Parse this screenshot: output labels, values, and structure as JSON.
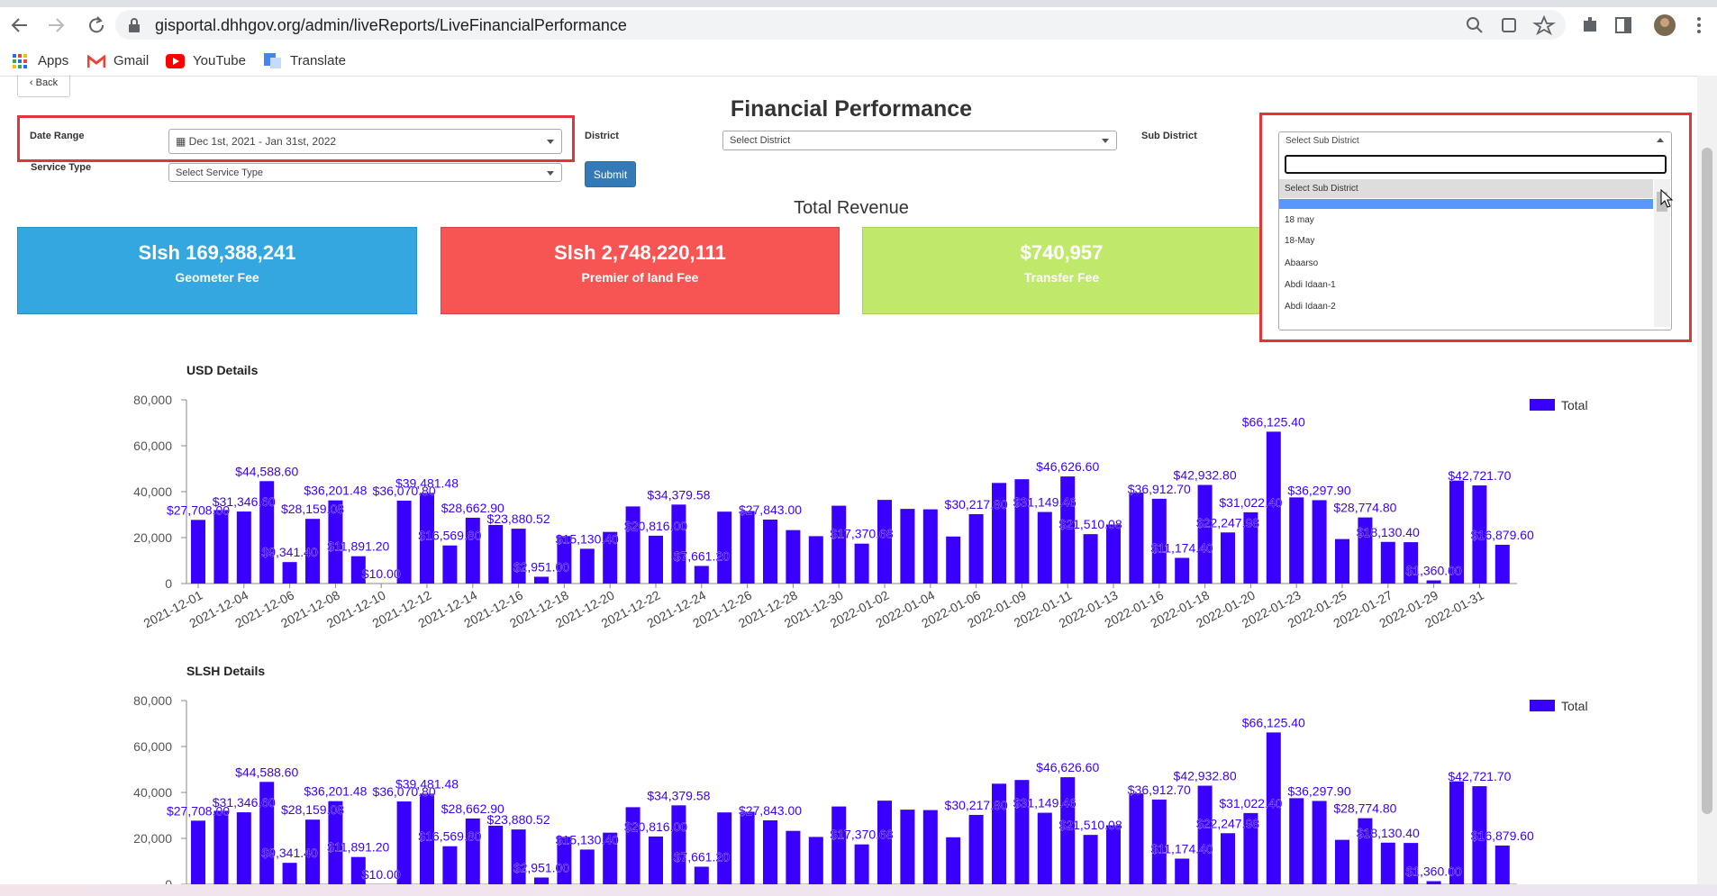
{
  "browser": {
    "url": "gisportal.dhhgov.org/admin/liveReports/LiveFinancialPerformance",
    "bookmarks": [
      "Apps",
      "Gmail",
      "YouTube",
      "Translate"
    ]
  },
  "page": {
    "back": "Back",
    "title": "Financial Performance",
    "filters": {
      "date_range_label": "Date Range",
      "date_range": "Dec 1st, 2021 - Jan 31st, 2022",
      "district_label": "District",
      "district": "Select District",
      "sub_district_label": "Sub District",
      "sub_district": "Select Sub District",
      "service_type_label": "Service Type",
      "service_type": "Select Service Type",
      "submit": "Submit"
    },
    "total_revenue": "Total Revenue",
    "cards": [
      {
        "amount": "Slsh 169,388,241",
        "label": "Geometer Fee"
      },
      {
        "amount": "Slsh 2,748,220,111",
        "label": "Premier of land Fee"
      },
      {
        "amount": "$740,957",
        "label": "Transfer Fee"
      }
    ],
    "dropdown": {
      "options": [
        "Select Sub District",
        "18 may",
        "18-May",
        "Abaarso",
        "Abdi Idaan-1",
        "Abdi Idaan-2"
      ]
    }
  },
  "chart_data": [
    {
      "type": "bar",
      "title": "USD Details",
      "categories": [
        "2021-12-01",
        null,
        "2021-12-04",
        null,
        "2021-12-06",
        null,
        "2021-12-08",
        null,
        "2021-12-10",
        null,
        "2021-12-12",
        null,
        "2021-12-14",
        null,
        "2021-12-16",
        null,
        "2021-12-18",
        null,
        "2021-12-20",
        null,
        "2021-12-22",
        null,
        "2021-12-24",
        null,
        "2021-12-26",
        null,
        "2021-12-28",
        null,
        "2021-12-30",
        null,
        "2022-01-02",
        null,
        "2022-01-04",
        null,
        "2022-01-06",
        null,
        "2022-01-09",
        null,
        "2022-01-11",
        null,
        "2022-01-13",
        null,
        "2022-01-16",
        null,
        "2022-01-18",
        null,
        "2022-01-20",
        null,
        "2022-01-23",
        null,
        "2022-01-25",
        null,
        "2022-01-27",
        null,
        "2022-01-29",
        null,
        "2022-01-31",
        null
      ],
      "series": [
        {
          "name": "Total",
          "color": "#3a00ff",
          "values": [
            27708,
            32000,
            31346.6,
            44588.6,
            9341.4,
            28159.08,
            36201.48,
            11891.2,
            10,
            36070.8,
            39481.48,
            16569.8,
            28662.9,
            25500,
            23880.52,
            2951,
            20679,
            15130.4,
            22475,
            33570,
            20816,
            34379.58,
            7661.2,
            31300,
            31572.28,
            27843,
            23256.4,
            20623,
            33881.34,
            17370.68,
            36423.55,
            32500,
            32316,
            20476.31,
            30217.8,
            43800,
            45417,
            31149.46,
            46626.6,
            21510.08,
            25699.74,
            39591.28,
            36912.7,
            11174.4,
            42932.8,
            22247.98,
            31022.4,
            66125.4,
            37500,
            36297.9,
            19364,
            28774.8,
            18130.4,
            18000,
            1360,
            44843.7,
            42721.7,
            16879.6
          ],
          "value_labels": [
            "$27,708.00",
            null,
            "$31,346.60",
            "$44,588.60",
            "$9,341.40",
            "$28,159.08",
            "$36,201.48",
            "$11,891.20",
            "$10.00",
            "$36,070.80",
            "$39,481.48",
            "$16,569.80",
            "$28,662.90",
            null,
            "$23,880.52",
            "$2,951.00",
            null,
            "$15,130.40",
            null,
            null,
            "$20,816.00",
            "$34,379.58",
            "$7,661.20",
            null,
            null,
            "$27,843.00",
            null,
            null,
            null,
            "$17,370.68",
            null,
            null,
            null,
            null,
            "$30,217.80",
            null,
            null,
            "$31,149.46",
            "$46,626.60",
            "$21,510.08",
            null,
            null,
            "$36,912.70",
            "$11,174.40",
            "$42,932.80",
            "$22,247.98",
            "$31,022.40",
            "$66,125.40",
            null,
            "$36,297.90",
            null,
            "$28,774.80",
            "$18,130.40",
            null,
            "$1,360.00",
            null,
            "$42,721.70",
            "$16,879.60"
          ]
        }
      ],
      "ylim": [
        0,
        80000
      ],
      "yticks": [
        0,
        {
          "value": 20000,
          "label": "20,000"
        },
        {
          "value": 40000,
          "label": "40,000"
        },
        {
          "value": 60000,
          "label": "60,000"
        },
        {
          "value": 80000,
          "label": "80,000"
        }
      ],
      "grid": false,
      "legend": "top-right"
    },
    {
      "type": "bar",
      "title": "SLSH Details",
      "series": [
        {
          "name": "Total",
          "color": "#3a00ff",
          "values": [
            27708,
            32000,
            31346.6,
            44588.6,
            9341.4,
            28159.08,
            36201.48,
            11891.2,
            10,
            36070.8,
            39481.48,
            16569.8,
            28662.9,
            25500,
            23880.52,
            2951,
            20679,
            15130.4,
            22475,
            33570,
            20816,
            34379.58,
            7661.2,
            31300,
            31572.28,
            27843,
            23256.4,
            20623,
            33881.34,
            17370.68,
            36423.55,
            32500,
            32316,
            20476.31,
            30217.8,
            43800,
            45417,
            31149.46,
            46626.6,
            21510.08,
            25699.74,
            39591.28,
            36912.7,
            11174.4,
            42932.8,
            22247.98,
            31022.4,
            66125.4,
            37500,
            36297.9,
            19364,
            28774.8,
            18130.4,
            18000,
            1360,
            44843.7,
            42721.7,
            16879.6
          ],
          "value_labels": [
            "$27,708.00",
            null,
            "$31,346.60",
            "$44,588.60",
            "$9,341.40",
            "$28,159.08",
            "$36,201.48",
            "$11,891.20",
            "$10.00",
            "$36,070.80",
            "$39,481.48",
            "$16,569.80",
            "$28,662.90",
            null,
            "$23,880.52",
            "$2,951.00",
            null,
            "$15,130.40",
            null,
            null,
            "$20,816.00",
            "$34,379.58",
            "$7,661.20",
            null,
            null,
            "$27,843.00",
            null,
            null,
            null,
            "$17,370.68",
            null,
            null,
            null,
            null,
            "$30,217.80",
            null,
            null,
            "$31,149.46",
            "$46,626.60",
            "$21,510.08",
            null,
            null,
            "$36,912.70",
            "$11,174.40",
            "$42,932.80",
            "$22,247.98",
            "$31,022.40",
            "$66,125.40",
            null,
            "$36,297.90",
            null,
            "$28,774.80",
            "$18,130.40",
            null,
            "$1,360.00",
            null,
            "$42,721.70",
            "$16,879.60"
          ]
        }
      ],
      "ylim": [
        0,
        80000
      ],
      "yticks": [
        0,
        {
          "value": 20000,
          "label": "20,000"
        },
        {
          "value": 40000,
          "label": "40,000"
        },
        {
          "value": 60000,
          "label": "60,000"
        },
        {
          "value": 80000,
          "label": "80,000"
        }
      ],
      "grid": false,
      "legend": "top-right"
    }
  ]
}
